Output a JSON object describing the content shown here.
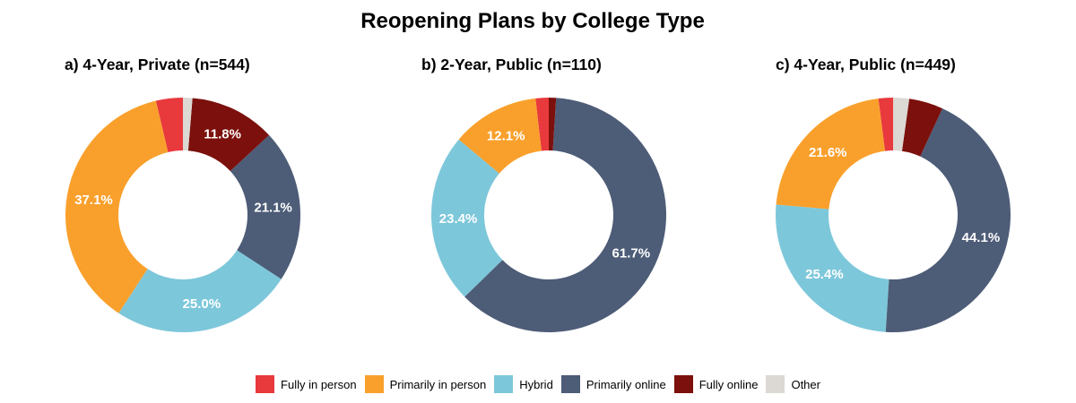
{
  "chart_data": {
    "type": "pie",
    "variant": "donut",
    "title": "Reopening Plans by College Type",
    "categories": [
      "Fully in person",
      "Primarily in person",
      "Hybrid",
      "Primarily online",
      "Fully online",
      "Other"
    ],
    "colors": [
      "#e8393d",
      "#f9a02c",
      "#7dc7da",
      "#4d5c77",
      "#7b100c",
      "#dcd8d3"
    ],
    "label_color": "#ffffff",
    "legend_position": "bottom-center",
    "start_angle_deg": 90,
    "direction": "counterclockwise",
    "inner_radius_ratio": 0.55,
    "labels_show_if_pct_gte": 10,
    "label_format": "one-decimal-percent",
    "unlabeled_slice_values_estimated_from_arc_angles": true,
    "charts": [
      {
        "label": "a) 4-Year, Private (n=544)",
        "group": "4-Year, Private",
        "n": 544,
        "values": [
          3.7,
          37.1,
          25.0,
          21.1,
          11.8,
          1.3
        ]
      },
      {
        "label": "b) 2-Year, Public (n=110)",
        "group": "2-Year, Public",
        "n": 110,
        "values": [
          1.8,
          12.1,
          23.4,
          61.7,
          1.0,
          0.0
        ]
      },
      {
        "label": "c) 4-Year, Public (n=449)",
        "group": "4-Year, Public",
        "n": 449,
        "values": [
          2.0,
          21.6,
          25.4,
          44.1,
          4.7,
          2.2
        ]
      }
    ]
  }
}
